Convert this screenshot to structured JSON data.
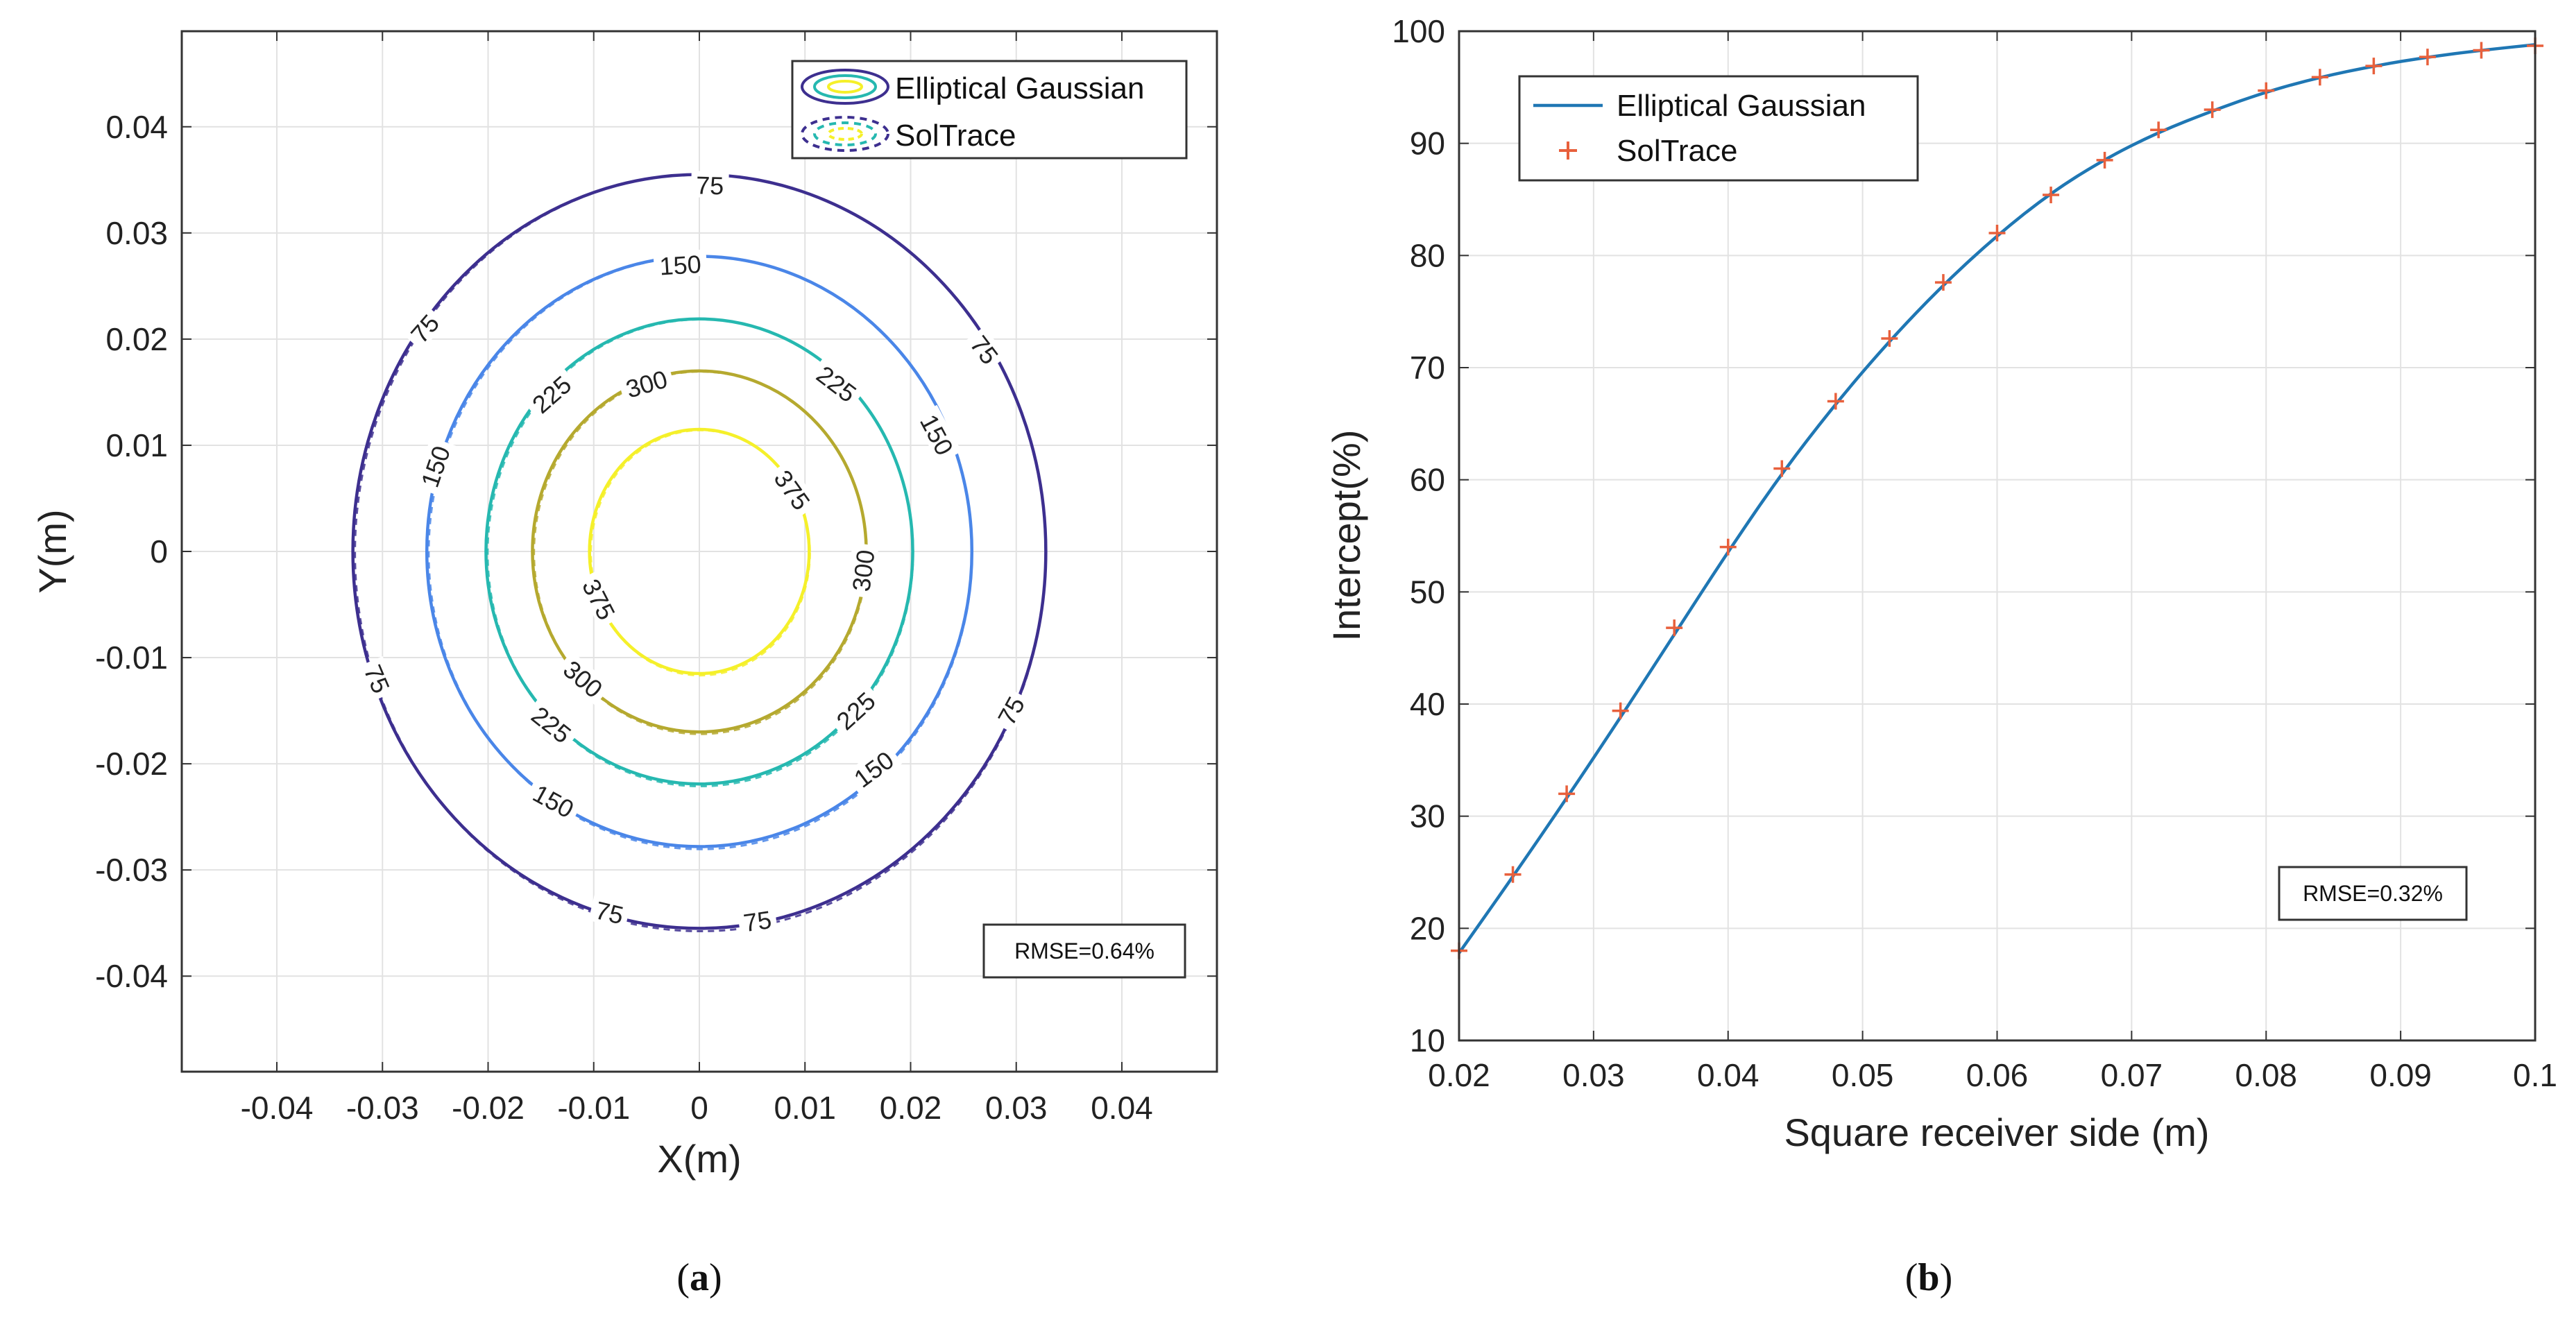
{
  "chart_data": [
    {
      "type": "contour",
      "panel": "(a)",
      "panel_letter": "a",
      "xlabel": "X(m)",
      "ylabel": "Y(m)",
      "xlim": [
        -0.049,
        0.049
      ],
      "ylim": [
        -0.049,
        0.049
      ],
      "xticks": [
        -0.04,
        -0.03,
        -0.02,
        -0.01,
        0,
        0.01,
        0.02,
        0.03,
        0.04
      ],
      "yticks": [
        -0.04,
        -0.03,
        -0.02,
        -0.01,
        0,
        0.01,
        0.02,
        0.03,
        0.04
      ],
      "xtick_labels": [
        "-0.04",
        "-0.03",
        "-0.02",
        "-0.01",
        "0",
        "0.01",
        "0.02",
        "0.03",
        "0.04"
      ],
      "ytick_labels": [
        "-0.04",
        "-0.03",
        "-0.02",
        "-0.01",
        "0",
        "0.01",
        "0.02",
        "0.03",
        "0.04"
      ],
      "grid": true,
      "legend": [
        "Elliptical Gaussian",
        "SolTrace"
      ],
      "legend_position": "top-right",
      "annotation": "RMSE=0.64%",
      "levels": [
        {
          "level": 75,
          "rx": 0.0328,
          "ry": 0.0355,
          "color": "#3d2f8f"
        },
        {
          "level": 150,
          "rx": 0.0258,
          "ry": 0.0278,
          "color": "#4a86e8"
        },
        {
          "level": 225,
          "rx": 0.0202,
          "ry": 0.0219,
          "color": "#26b8b0"
        },
        {
          "level": 300,
          "rx": 0.0158,
          "ry": 0.017,
          "color": "#b5a92f"
        },
        {
          "level": 375,
          "rx": 0.0104,
          "ry": 0.0115,
          "color": "#f5f02a"
        }
      ],
      "contour_labels": [
        {
          "text": "75",
          "x": 0.001,
          "y": 0.0345
        },
        {
          "text": "75",
          "x": -0.026,
          "y": 0.021
        },
        {
          "text": "75",
          "x": 0.027,
          "y": 0.019
        },
        {
          "text": "75",
          "x": -0.0305,
          "y": -0.012
        },
        {
          "text": "75",
          "x": 0.0295,
          "y": -0.015
        },
        {
          "text": "75",
          "x": -0.0085,
          "y": -0.034
        },
        {
          "text": "75",
          "x": 0.0055,
          "y": -0.0348
        },
        {
          "text": "150",
          "x": -0.0018,
          "y": 0.027
        },
        {
          "text": "150",
          "x": -0.025,
          "y": 0.008
        },
        {
          "text": "150",
          "x": 0.0225,
          "y": 0.011
        },
        {
          "text": "150",
          "x": -0.0138,
          "y": -0.0235
        },
        {
          "text": "150",
          "x": 0.0165,
          "y": -0.0205
        },
        {
          "text": "225",
          "x": -0.014,
          "y": 0.0148
        },
        {
          "text": "225",
          "x": 0.013,
          "y": 0.0158
        },
        {
          "text": "225",
          "x": -0.014,
          "y": -0.0163
        },
        {
          "text": "225",
          "x": 0.0148,
          "y": -0.015
        },
        {
          "text": "300",
          "x": -0.005,
          "y": 0.0158
        },
        {
          "text": "300",
          "x": 0.0155,
          "y": -0.0018
        },
        {
          "text": "300",
          "x": -0.011,
          "y": -0.012
        },
        {
          "text": "375",
          "x": 0.0088,
          "y": 0.0058
        },
        {
          "text": "375",
          "x": -0.0095,
          "y": -0.0045
        }
      ]
    },
    {
      "type": "line",
      "panel": "(b)",
      "panel_letter": "b",
      "xlabel": "Square receiver side (m)",
      "ylabel": "Intercept(%)",
      "xlim": [
        0.02,
        0.1
      ],
      "ylim": [
        10,
        100
      ],
      "xticks": [
        0.02,
        0.03,
        0.04,
        0.05,
        0.06,
        0.07,
        0.08,
        0.09,
        0.1
      ],
      "yticks": [
        10,
        20,
        30,
        40,
        50,
        60,
        70,
        80,
        90,
        100
      ],
      "xtick_labels": [
        "0.02",
        "0.03",
        "0.04",
        "0.05",
        "0.06",
        "0.07",
        "0.08",
        "0.09",
        "0.1"
      ],
      "ytick_labels": [
        "10",
        "20",
        "30",
        "40",
        "50",
        "60",
        "70",
        "80",
        "90",
        "100"
      ],
      "grid": true,
      "legend_position": "top-left",
      "annotation": "RMSE=0.32%",
      "series": [
        {
          "name": "Elliptical Gaussian",
          "style": "line",
          "color": "#1f77b4",
          "x": [
            0.02,
            0.024,
            0.028,
            0.032,
            0.036,
            0.04,
            0.044,
            0.048,
            0.052,
            0.056,
            0.06,
            0.064,
            0.068,
            0.072,
            0.076,
            0.08,
            0.084,
            0.088,
            0.092,
            0.096,
            0.1
          ],
          "y": [
            17.8,
            24.6,
            31.6,
            38.8,
            46.2,
            53.6,
            60.6,
            66.8,
            72.4,
            77.4,
            81.8,
            85.6,
            88.6,
            91.0,
            92.9,
            94.6,
            95.9,
            96.9,
            97.7,
            98.3,
            98.8
          ]
        },
        {
          "name": "SolTrace",
          "style": "marker",
          "color": "#e8603c",
          "x": [
            0.02,
            0.024,
            0.028,
            0.032,
            0.036,
            0.04,
            0.044,
            0.048,
            0.052,
            0.056,
            0.06,
            0.064,
            0.068,
            0.072,
            0.076,
            0.08,
            0.084,
            0.088,
            0.092,
            0.096,
            0.1
          ],
          "y": [
            18.0,
            24.8,
            32.0,
            39.4,
            46.8,
            54.0,
            61.0,
            67.0,
            72.6,
            77.6,
            82.0,
            85.4,
            88.5,
            91.2,
            93.0,
            94.7,
            95.9,
            96.9,
            97.7,
            98.3,
            98.7
          ]
        }
      ]
    }
  ]
}
